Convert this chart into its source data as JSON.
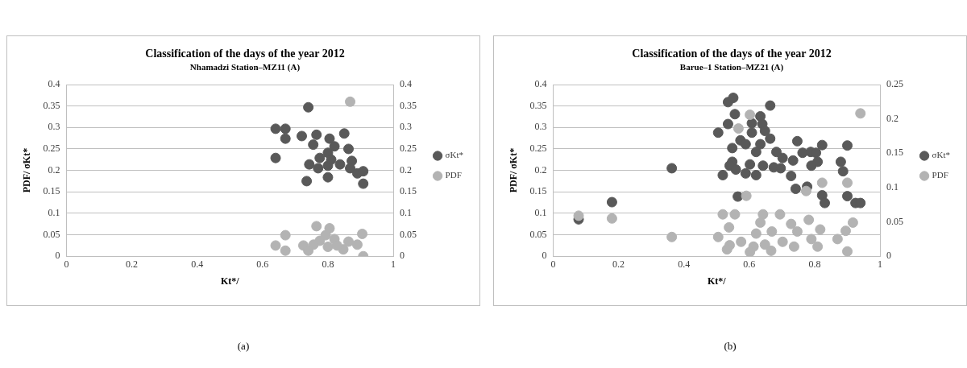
{
  "chart_data": [
    {
      "type": "scatter",
      "title": "Classification of the days of the year 2012",
      "subtitle": "Nhamadzi Station–MZ11 (A)",
      "xlabel": "Kt*/",
      "ylabel": "PDF/ σKt*",
      "annotations": [
        "(a)"
      ],
      "xlim": [
        0,
        1
      ],
      "xticks": [
        0,
        0.2,
        0.4,
        0.6,
        0.8,
        1
      ],
      "ylim": [
        0,
        0.4
      ],
      "yticks": [
        0,
        0.05,
        0.1,
        0.15,
        0.2,
        0.25,
        0.3,
        0.35,
        0.4
      ],
      "y2lim": [
        0,
        0.4
      ],
      "y2ticks": [
        0,
        0.05,
        0.1,
        0.15,
        0.2,
        0.25,
        0.3,
        0.35,
        0.4
      ],
      "grid": "y",
      "legend": "right",
      "marker": "circle",
      "series": [
        {
          "name": "σKt*",
          "color": "#595959",
          "x": [
            0.74,
            0.64,
            0.67,
            0.67,
            0.64,
            0.72,
            0.765,
            0.85,
            0.805,
            0.755,
            0.82,
            0.863,
            0.8,
            0.775,
            0.743,
            0.77,
            0.8,
            0.837,
            0.873,
            0.868,
            0.89,
            0.908,
            0.8,
            0.735,
            0.908,
            0.81
          ],
          "values": [
            0.347,
            0.297,
            0.297,
            0.274,
            0.229,
            0.28,
            0.283,
            0.286,
            0.274,
            0.26,
            0.256,
            0.25,
            0.241,
            0.229,
            0.214,
            0.205,
            0.211,
            0.214,
            0.222,
            0.205,
            0.193,
            0.198,
            0.184,
            0.175,
            0.169,
            0.225
          ]
        },
        {
          "name": "PDF",
          "color": "#b3b3b3",
          "axis": "y2",
          "x": [
            0.868,
            0.765,
            0.805,
            0.67,
            0.905,
            0.64,
            0.67,
            0.908,
            0.725,
            0.74,
            0.775,
            0.793,
            0.82,
            0.847,
            0.863,
            0.89,
            0.756,
            0.8,
            0.828
          ],
          "values": [
            0.36,
            0.07,
            0.065,
            0.049,
            0.052,
            0.025,
            0.013,
            0,
            0.025,
            0.013,
            0.036,
            0.049,
            0.04,
            0.016,
            0.034,
            0.027,
            0.027,
            0.022,
            0.025
          ]
        }
      ]
    },
    {
      "type": "scatter",
      "title": "Classification of the days of the year 2012",
      "subtitle": "Barue–1 Station–MZ21 (A)",
      "xlabel": "Kt*/",
      "ylabel": "PDF/ σKt*",
      "annotations": [
        "(b)"
      ],
      "xlim": [
        0,
        1
      ],
      "xticks": [
        0,
        0.2,
        0.4,
        0.6,
        0.8,
        1
      ],
      "ylim": [
        0,
        0.4
      ],
      "yticks": [
        0,
        0.05,
        0.1,
        0.15,
        0.2,
        0.25,
        0.3,
        0.35,
        0.4
      ],
      "y2lim": [
        0,
        0.25
      ],
      "y2ticks": [
        0,
        0.05,
        0.1,
        0.15,
        0.2,
        0.25
      ],
      "grid": "y",
      "legend": "right",
      "marker": "circle",
      "series": [
        {
          "name": "σKt*",
          "color": "#595959",
          "x": [
            0.078,
            0.18,
            0.363,
            0.535,
            0.551,
            0.664,
            0.556,
            0.634,
            0.535,
            0.505,
            0.608,
            0.64,
            0.608,
            0.648,
            0.664,
            0.573,
            0.589,
            0.548,
            0.634,
            0.621,
            0.747,
            0.683,
            0.702,
            0.734,
            0.763,
            0.788,
            0.804,
            0.823,
            0.809,
            0.79,
            0.548,
            0.54,
            0.602,
            0.642,
            0.675,
            0.696,
            0.589,
            0.621,
            0.519,
            0.728,
            0.559,
            0.742,
            0.777,
            0.823,
            0.831,
            0.565,
            0.9,
            0.925,
            0.94,
            0.9,
            0.88,
            0.887
          ],
          "values": [
            0.086,
            0.126,
            0.205,
            0.359,
            0.369,
            0.351,
            0.331,
            0.326,
            0.308,
            0.288,
            0.31,
            0.308,
            0.288,
            0.292,
            0.274,
            0.27,
            0.261,
            0.252,
            0.261,
            0.243,
            0.268,
            0.243,
            0.229,
            0.223,
            0.241,
            0.243,
            0.241,
            0.259,
            0.22,
            0.211,
            0.22,
            0.211,
            0.214,
            0.211,
            0.207,
            0.205,
            0.193,
            0.189,
            0.189,
            0.187,
            0.202,
            0.157,
            0.162,
            0.142,
            0.124,
            0.139,
            0.14,
            0.124,
            0.124,
            0.258,
            0.22,
            0.198
          ]
        },
        {
          "name": "PDF",
          "color": "#b3b3b3",
          "axis": "y2",
          "x": [
            0.078,
            0.18,
            0.363,
            0.602,
            0.567,
            0.823,
            0.774,
            0.591,
            0.519,
            0.556,
            0.642,
            0.694,
            0.538,
            0.634,
            0.728,
            0.782,
            0.505,
            0.747,
            0.669,
            0.621,
            0.817,
            0.54,
            0.575,
            0.613,
            0.648,
            0.667,
            0.702,
            0.737,
            0.79,
            0.809,
            0.602,
            0.532,
            0.94,
            0.9,
            0.917,
            0.895,
            0.9,
            0.87
          ],
          "values": [
            0.059,
            0.055,
            0.028,
            0.206,
            0.186,
            0.107,
            0.095,
            0.088,
            0.061,
            0.061,
            0.061,
            0.061,
            0.042,
            0.049,
            0.047,
            0.053,
            0.028,
            0.036,
            0.036,
            0.033,
            0.039,
            0.016,
            0.021,
            0.014,
            0.017,
            0.008,
            0.021,
            0.014,
            0.025,
            0.014,
            0.006,
            0.01,
            0.208,
            0.107,
            0.049,
            0.037,
            0.007,
            0.025
          ]
        }
      ]
    }
  ]
}
